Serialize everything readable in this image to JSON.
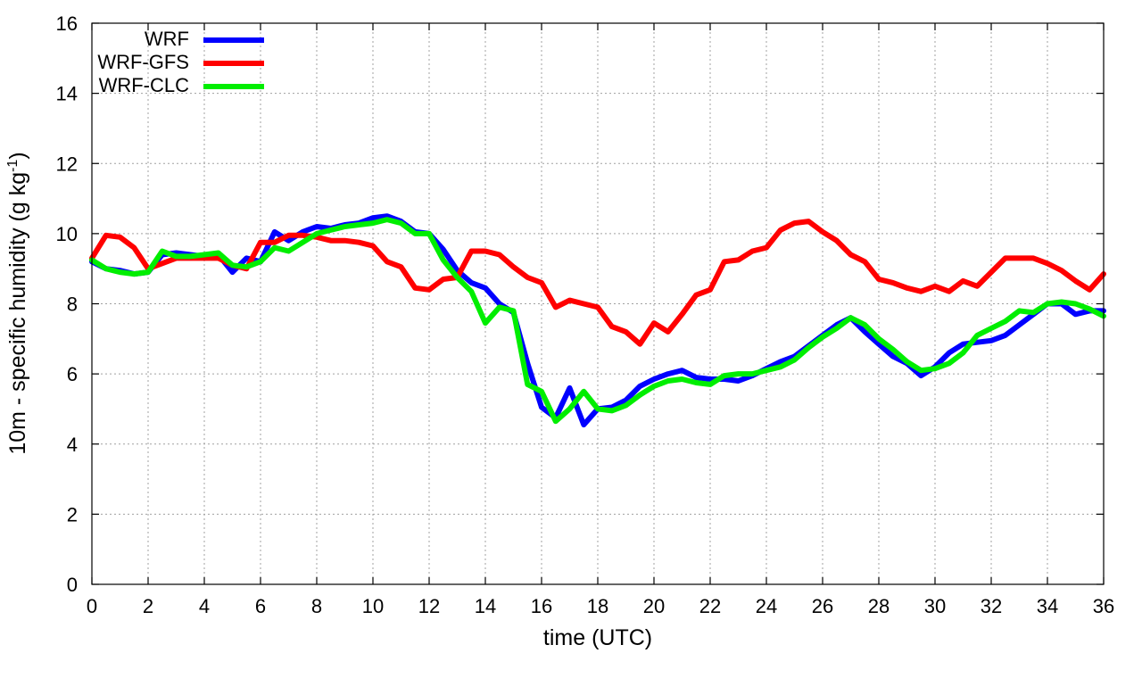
{
  "chart_data": {
    "type": "line",
    "title": "",
    "xlabel": "time (UTC)",
    "ylabel_main": "10m - specific humidity (g kg",
    "ylabel_sup": "-1",
    "ylabel_end": ")",
    "xlim": [
      0,
      36
    ],
    "ylim": [
      0,
      16
    ],
    "xticks": [
      0,
      2,
      4,
      6,
      8,
      10,
      12,
      14,
      16,
      18,
      20,
      22,
      24,
      26,
      28,
      30,
      32,
      34,
      36
    ],
    "yticks": [
      0,
      2,
      4,
      6,
      8,
      10,
      12,
      14,
      16
    ],
    "xtick_labels": [
      "0",
      "2",
      "4",
      "6",
      "8",
      "10",
      "12",
      "14",
      "16",
      "18",
      "20",
      "22",
      "24",
      "26",
      "28",
      "30",
      "32",
      "34",
      "36"
    ],
    "ytick_labels": [
      "0",
      "2",
      "4",
      "6",
      "8",
      "10",
      "12",
      "14",
      "16"
    ],
    "grid": true,
    "legend_position": "top-left",
    "series": [
      {
        "name": "WRF",
        "color": "#0000ff",
        "x": [
          0,
          0.5,
          1,
          1.5,
          2,
          2.5,
          3,
          3.5,
          4,
          4.5,
          5,
          5.5,
          6,
          6.5,
          7,
          7.5,
          8,
          8.5,
          9,
          9.5,
          10,
          10.5,
          11,
          11.5,
          12,
          12.5,
          13,
          13.5,
          14,
          14.5,
          15,
          15.5,
          16,
          16.5,
          17,
          17.5,
          18,
          18.5,
          19,
          19.5,
          20,
          20.5,
          21,
          21.5,
          22,
          22.5,
          23,
          23.5,
          24,
          24.5,
          25,
          25.5,
          26,
          26.5,
          27,
          27.5,
          28,
          28.5,
          29,
          29.5,
          30,
          30.5,
          31,
          31.5,
          32,
          32.5,
          33,
          33.5,
          34,
          34.5,
          35,
          35.5,
          36
        ],
        "y": [
          9.2,
          9.0,
          8.95,
          8.85,
          8.9,
          9.4,
          9.45,
          9.4,
          9.35,
          9.4,
          8.9,
          9.3,
          9.2,
          10.05,
          9.8,
          10.05,
          10.2,
          10.15,
          10.25,
          10.3,
          10.45,
          10.5,
          10.35,
          10.05,
          10.0,
          9.55,
          8.95,
          8.6,
          8.45,
          8.0,
          7.75,
          6.3,
          5.05,
          4.75,
          5.6,
          4.55,
          5.0,
          5.05,
          5.25,
          5.65,
          5.85,
          6.0,
          6.1,
          5.9,
          5.85,
          5.85,
          5.8,
          5.95,
          6.15,
          6.35,
          6.5,
          6.8,
          7.1,
          7.4,
          7.6,
          7.2,
          6.85,
          6.5,
          6.3,
          5.95,
          6.2,
          6.6,
          6.85,
          6.9,
          6.95,
          7.1,
          7.4,
          7.7,
          8.0,
          8.0,
          7.7,
          7.8,
          7.8
        ]
      },
      {
        "name": "WRF-GFS",
        "color": "#ff0000",
        "x": [
          0,
          0.5,
          1,
          1.5,
          2,
          2.5,
          3,
          3.5,
          4,
          4.5,
          5,
          5.5,
          6,
          6.5,
          7,
          7.5,
          8,
          8.5,
          9,
          9.5,
          10,
          10.5,
          11,
          11.5,
          12,
          12.5,
          13,
          13.5,
          14,
          14.5,
          15,
          15.5,
          16,
          16.5,
          17,
          17.5,
          18,
          18.5,
          19,
          19.5,
          20,
          20.5,
          21,
          21.5,
          22,
          22.5,
          23,
          23.5,
          24,
          24.5,
          25,
          25.5,
          26,
          26.5,
          27,
          27.5,
          28,
          28.5,
          29,
          29.5,
          30,
          30.5,
          31,
          31.5,
          32,
          32.5,
          33,
          33.5,
          34,
          34.5,
          35,
          35.5,
          36
        ],
        "y": [
          9.3,
          9.95,
          9.9,
          9.6,
          9.0,
          9.15,
          9.3,
          9.3,
          9.3,
          9.3,
          9.1,
          9.0,
          9.75,
          9.75,
          9.95,
          9.95,
          9.9,
          9.8,
          9.8,
          9.75,
          9.65,
          9.2,
          9.05,
          8.45,
          8.4,
          8.7,
          8.75,
          9.5,
          9.5,
          9.4,
          9.05,
          8.75,
          8.6,
          7.9,
          8.1,
          8.0,
          7.9,
          7.35,
          7.2,
          6.85,
          7.45,
          7.2,
          7.7,
          8.25,
          8.4,
          9.2,
          9.25,
          9.5,
          9.6,
          10.1,
          10.3,
          10.35,
          10.05,
          9.8,
          9.4,
          9.2,
          8.7,
          8.6,
          8.45,
          8.35,
          8.5,
          8.35,
          8.65,
          8.5,
          8.9,
          9.3,
          9.3,
          9.3,
          9.15,
          8.95,
          8.65,
          8.4,
          8.85
        ]
      },
      {
        "name": "WRF-CLC",
        "color": "#00ee00",
        "x": [
          0,
          0.5,
          1,
          1.5,
          2,
          2.5,
          3,
          3.5,
          4,
          4.5,
          5,
          5.5,
          6,
          6.5,
          7,
          7.5,
          8,
          8.5,
          9,
          9.5,
          10,
          10.5,
          11,
          11.5,
          12,
          12.5,
          13,
          13.5,
          14,
          14.5,
          15,
          15.5,
          16,
          16.5,
          17,
          17.5,
          18,
          18.5,
          19,
          19.5,
          20,
          20.5,
          21,
          21.5,
          22,
          22.5,
          23,
          23.5,
          24,
          24.5,
          25,
          25.5,
          26,
          26.5,
          27,
          27.5,
          28,
          28.5,
          29,
          29.5,
          30,
          30.5,
          31,
          31.5,
          32,
          32.5,
          33,
          33.5,
          34,
          34.5,
          35,
          35.5,
          36
        ],
        "y": [
          9.25,
          9.0,
          8.9,
          8.85,
          8.9,
          9.5,
          9.35,
          9.35,
          9.4,
          9.45,
          9.1,
          9.05,
          9.2,
          9.6,
          9.5,
          9.75,
          10.0,
          10.1,
          10.2,
          10.25,
          10.3,
          10.4,
          10.3,
          10.0,
          10.0,
          9.25,
          8.75,
          8.35,
          7.45,
          7.9,
          7.8,
          5.7,
          5.5,
          4.65,
          5.0,
          5.5,
          5.0,
          4.95,
          5.1,
          5.4,
          5.65,
          5.8,
          5.85,
          5.75,
          5.7,
          5.95,
          6.0,
          6.0,
          6.1,
          6.2,
          6.4,
          6.75,
          7.05,
          7.3,
          7.6,
          7.4,
          7.0,
          6.7,
          6.35,
          6.1,
          6.15,
          6.3,
          6.6,
          7.1,
          7.3,
          7.5,
          7.8,
          7.75,
          8.0,
          8.05,
          8.0,
          7.85,
          7.65
        ]
      }
    ]
  }
}
